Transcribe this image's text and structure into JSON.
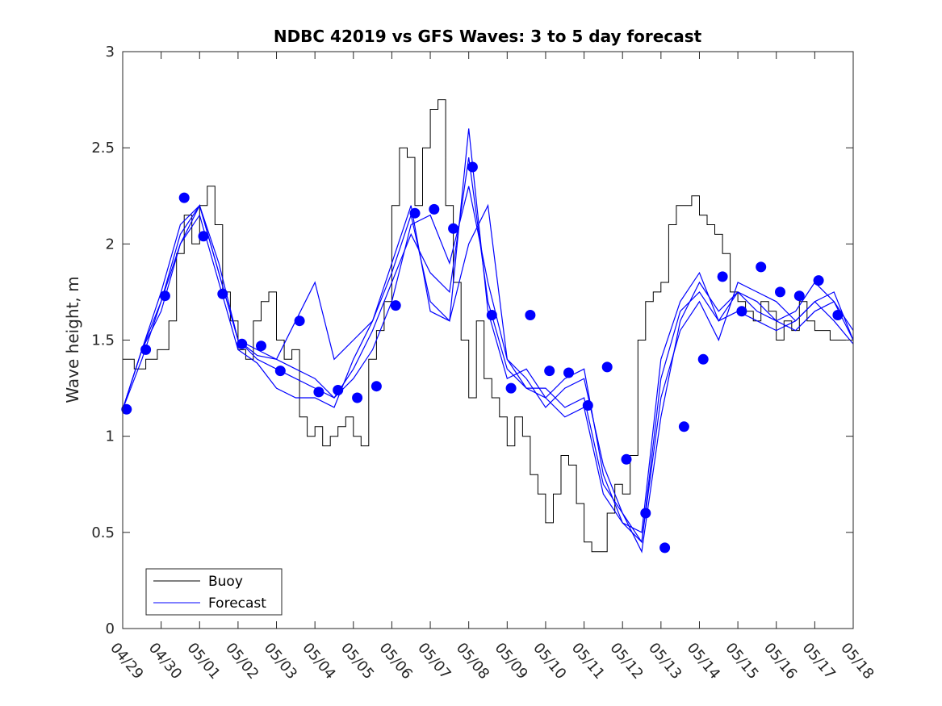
{
  "chart_data": {
    "type": "line",
    "title": "NDBC 42019 vs GFS Waves: 3 to 5 day forecast",
    "xlabel": "",
    "ylabel": "Wave height, m",
    "ylim": [
      0,
      3
    ],
    "yticks": [
      "0",
      "0.5",
      "1",
      "1.5",
      "2",
      "2.5",
      "3"
    ],
    "xticks": [
      "04/29",
      "04/30",
      "05/01",
      "05/02",
      "05/03",
      "05/04",
      "05/05",
      "05/06",
      "05/07",
      "05/08",
      "05/09",
      "05/10",
      "05/11",
      "05/12",
      "05/13",
      "05/14",
      "05/15",
      "05/16",
      "05/17",
      "05/18"
    ],
    "xlim_days": [
      0,
      19
    ],
    "legend": {
      "position": "bottom-left",
      "entries": [
        "Buoy",
        "Forecast"
      ]
    },
    "colors": {
      "buoy": "#000000",
      "forecast": "#0000ff",
      "marker": "#0000ff",
      "axis": "#262626"
    },
    "buoy": {
      "x_days": [
        0,
        0.3,
        0.6,
        0.9,
        1.2,
        1.4,
        1.6,
        1.8,
        2,
        2.2,
        2.4,
        2.6,
        2.8,
        3,
        3.2,
        3.4,
        3.6,
        3.8,
        4,
        4.2,
        4.4,
        4.6,
        4.8,
        5,
        5.2,
        5.4,
        5.6,
        5.8,
        6,
        6.2,
        6.4,
        6.6,
        6.8,
        7,
        7.2,
        7.4,
        7.6,
        7.8,
        8,
        8.2,
        8.4,
        8.6,
        8.8,
        9,
        9.2,
        9.4,
        9.6,
        9.8,
        10,
        10.2,
        10.4,
        10.6,
        10.8,
        11,
        11.2,
        11.4,
        11.6,
        11.8,
        12,
        12.2,
        12.4,
        12.6,
        12.8,
        13,
        13.2,
        13.4,
        13.6,
        13.8,
        14,
        14.2,
        14.4,
        14.6,
        14.8,
        15,
        15.2,
        15.4,
        15.6,
        15.8,
        16,
        16.2,
        16.4,
        16.6,
        16.8,
        17,
        17.2,
        17.4,
        17.6,
        17.8,
        18,
        18.2,
        18.4,
        18.6,
        18.8,
        19
      ],
      "values": [
        1.4,
        1.35,
        1.4,
        1.45,
        1.6,
        1.95,
        2.15,
        2.0,
        2.2,
        2.3,
        2.1,
        1.75,
        1.6,
        1.45,
        1.4,
        1.6,
        1.7,
        1.75,
        1.5,
        1.4,
        1.45,
        1.1,
        1.0,
        1.05,
        0.95,
        1.0,
        1.05,
        1.1,
        1.0,
        0.95,
        1.4,
        1.55,
        1.7,
        2.2,
        2.5,
        2.45,
        2.2,
        2.5,
        2.7,
        2.75,
        2.2,
        1.8,
        1.5,
        1.2,
        1.6,
        1.3,
        1.2,
        1.1,
        0.95,
        1.1,
        1.0,
        0.8,
        0.7,
        0.55,
        0.7,
        0.9,
        0.85,
        0.65,
        0.45,
        0.4,
        0.4,
        0.6,
        0.75,
        0.7,
        0.9,
        1.5,
        1.7,
        1.75,
        1.8,
        2.1,
        2.2,
        2.2,
        2.25,
        2.15,
        2.1,
        2.05,
        1.95,
        1.75,
        1.7,
        1.65,
        1.6,
        1.7,
        1.65,
        1.5,
        1.6,
        1.55,
        1.7,
        1.6,
        1.55,
        1.55,
        1.5,
        1.5,
        1.5,
        1.55
      ]
    },
    "forecast": {
      "x_days": [
        0,
        0.5,
        1,
        1.5,
        2,
        2.5,
        3,
        3.5,
        4,
        4.5,
        5,
        5.5,
        6,
        6.5,
        7,
        7.5,
        8,
        8.5,
        9,
        9.5,
        10,
        10.5,
        11,
        11.5,
        12,
        12.5,
        13,
        13.5,
        14,
        14.5,
        15,
        15.5,
        16,
        16.5,
        17,
        17.5,
        18,
        18.5,
        19
      ],
      "series": [
        {
          "values": [
            1.14,
            1.4,
            1.7,
            2.05,
            2.2,
            1.9,
            1.5,
            1.4,
            1.35,
            1.3,
            1.25,
            1.2,
            1.3,
            1.45,
            1.7,
            2.1,
            2.15,
            1.9,
            2.3,
            1.8,
            1.4,
            1.3,
            1.15,
            1.25,
            1.3,
            0.85,
            0.6,
            0.4,
            1.1,
            1.6,
            1.8,
            1.65,
            1.75,
            1.7,
            1.6,
            1.65,
            1.8,
            1.7,
            1.55
          ]
        },
        {
          "values": [
            1.14,
            1.45,
            1.75,
            2.1,
            2.2,
            1.85,
            1.5,
            1.42,
            1.4,
            1.35,
            1.3,
            1.2,
            1.35,
            1.55,
            1.8,
            2.05,
            1.85,
            1.75,
            2.45,
            1.7,
            1.35,
            1.25,
            1.25,
            1.15,
            1.2,
            0.75,
            0.6,
            0.45,
            1.3,
            1.65,
            1.75,
            1.6,
            1.65,
            1.6,
            1.55,
            1.6,
            1.7,
            1.75,
            1.5
          ]
        },
        {
          "values": [
            1.14,
            1.45,
            1.7,
            2.0,
            2.15,
            1.8,
            1.45,
            1.38,
            1.25,
            1.2,
            1.2,
            1.15,
            1.4,
            1.6,
            1.85,
            2.15,
            1.7,
            1.6,
            2.6,
            1.65,
            1.3,
            1.35,
            1.2,
            1.1,
            1.15,
            0.7,
            0.55,
            0.5,
            1.4,
            1.7,
            1.85,
            1.6,
            1.75,
            1.65,
            1.6,
            1.55,
            1.65,
            1.7,
            1.5
          ]
        },
        {
          "values": [
            1.14,
            1.45,
            1.65,
            2.0,
            2.2,
            1.85,
            1.5,
            1.45,
            1.4,
            1.6,
            1.8,
            1.4,
            1.5,
            1.6,
            1.9,
            2.2,
            1.65,
            1.6,
            2.0,
            2.2,
            1.4,
            1.25,
            1.2,
            1.3,
            1.35,
            0.8,
            0.55,
            0.45,
            1.2,
            1.55,
            1.7,
            1.5,
            1.8,
            1.75,
            1.7,
            1.6,
            1.7,
            1.6,
            1.48
          ]
        }
      ]
    },
    "markers": {
      "x_days": [
        0.1,
        0.6,
        1.1,
        1.6,
        2.1,
        2.6,
        3.1,
        3.6,
        4.1,
        4.6,
        5.1,
        5.6,
        6.1,
        6.6,
        7.1,
        7.6,
        8.1,
        8.6,
        9.1,
        9.6,
        10.1,
        10.6,
        11.1,
        11.6,
        12.1,
        12.6,
        13.1,
        13.6,
        14.1,
        14.6,
        15.1,
        15.6,
        16.1,
        16.6,
        17.1,
        17.6,
        18.1,
        18.6
      ],
      "values": [
        1.14,
        1.45,
        1.73,
        2.24,
        2.04,
        1.74,
        1.48,
        1.47,
        1.34,
        1.6,
        1.23,
        1.24,
        1.2,
        1.26,
        1.68,
        2.16,
        2.18,
        2.08,
        2.4,
        1.63,
        1.25,
        1.63,
        1.34,
        1.33,
        1.16,
        1.36,
        0.88,
        0.6,
        0.42,
        1.05,
        1.4,
        1.83,
        1.65,
        1.88,
        1.75,
        1.73,
        1.81,
        1.63
      ]
    }
  }
}
